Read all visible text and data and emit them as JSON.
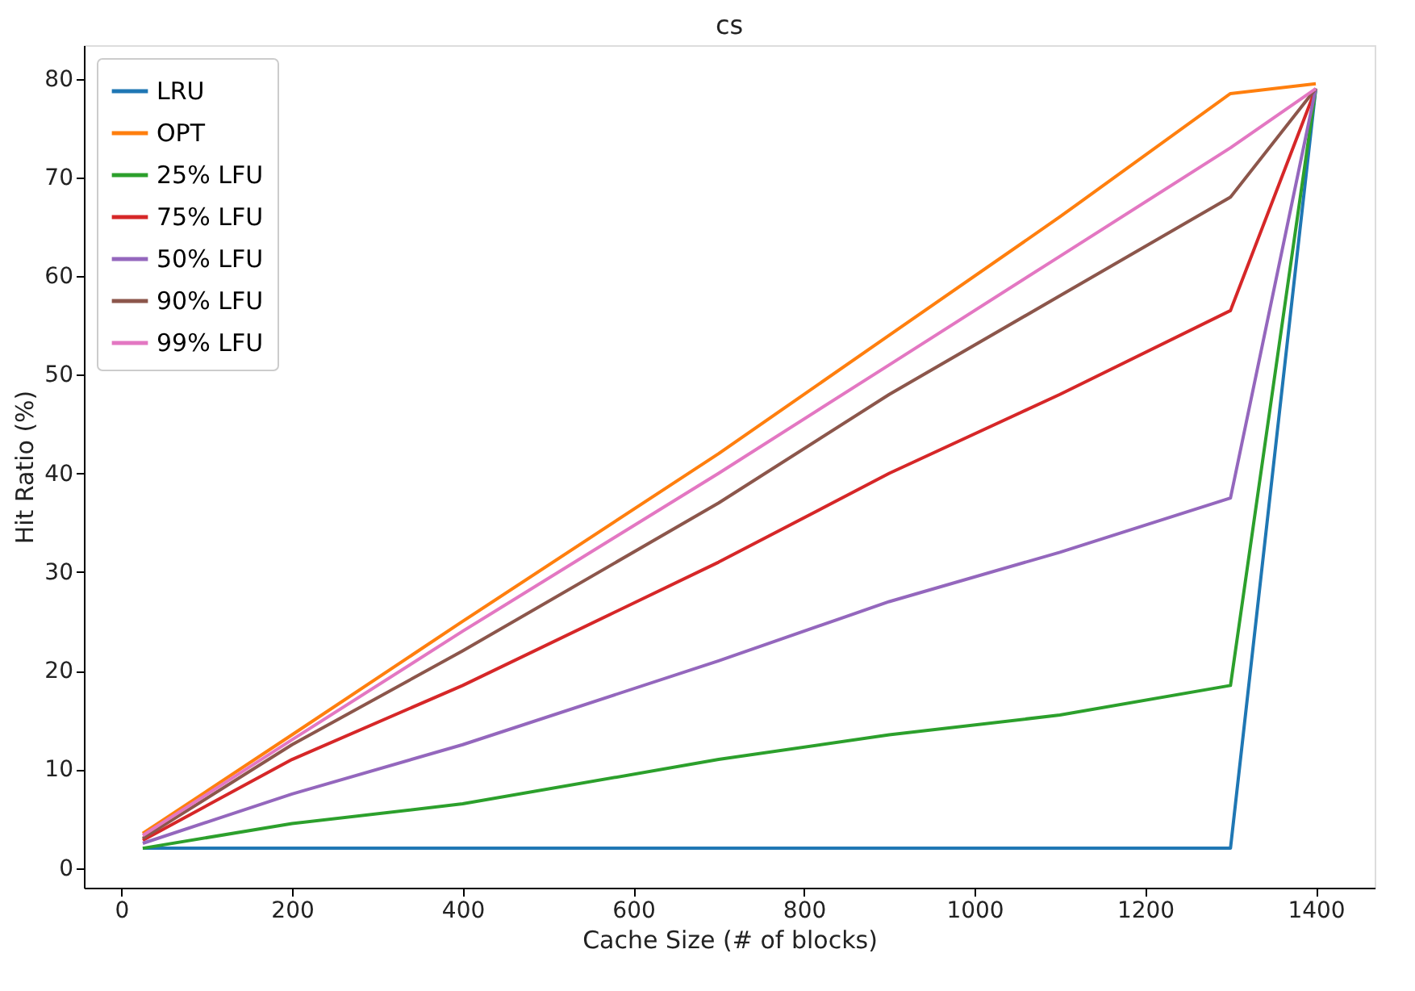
{
  "chart_data": {
    "type": "line",
    "title": "cs",
    "xlabel": "Cache Size (# of blocks)",
    "ylabel": "Hit Ratio (%)",
    "x": [
      25,
      200,
      400,
      700,
      900,
      1100,
      1300,
      1400
    ],
    "xlim": [
      -44,
      1469
    ],
    "xticks": [
      0,
      200,
      400,
      600,
      800,
      1000,
      1200,
      1400
    ],
    "ylim": [
      -2,
      83.4
    ],
    "yticks": [
      0,
      10,
      20,
      30,
      40,
      50,
      60,
      70,
      80
    ],
    "grid": false,
    "legend": "top left",
    "marker": "none",
    "line_style": "solid",
    "series": [
      {
        "name": "LRU",
        "color": "#1f77b4",
        "values": [
          2,
          2,
          2,
          2,
          2,
          2,
          2,
          79
        ]
      },
      {
        "name": "OPT",
        "color": "#ff7f0e",
        "values": [
          3.5,
          13.5,
          25,
          42,
          54,
          66,
          78.5,
          79.5
        ]
      },
      {
        "name": "25% LFU",
        "color": "#2ca02c",
        "values": [
          2,
          4.5,
          6.5,
          11,
          13.5,
          15.5,
          18.5,
          79
        ]
      },
      {
        "name": "75% LFU",
        "color": "#d62728",
        "values": [
          2.8,
          11,
          18.5,
          31,
          40,
          48,
          56.5,
          79
        ]
      },
      {
        "name": "50% LFU",
        "color": "#9467bd",
        "values": [
          2.5,
          7.5,
          12.5,
          21,
          27,
          32,
          37.5,
          79
        ]
      },
      {
        "name": "90% LFU",
        "color": "#8c564b",
        "values": [
          3,
          12.5,
          22,
          37,
          48,
          58,
          68,
          79
        ]
      },
      {
        "name": "99% LFU",
        "color": "#e377c2",
        "values": [
          3.3,
          13,
          24,
          40,
          51,
          62,
          73,
          79
        ]
      }
    ]
  }
}
